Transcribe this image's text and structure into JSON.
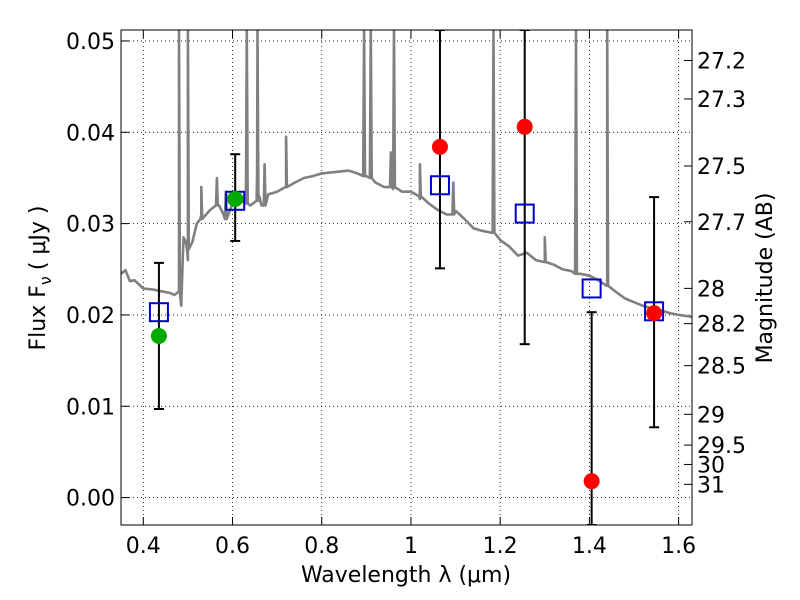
{
  "chart_data": {
    "type": "scatter",
    "xlabel": "Wavelength  λ (μm)",
    "ylabel": "Flux  F",
    "ylabel_sub": "ν",
    "ylabel_unit": "( μJy )",
    "y2label": "Magnitude (AB)",
    "xlim": [
      0.35,
      1.63
    ],
    "ylim": [
      -0.003,
      0.0512
    ],
    "grid": true,
    "x_ticks": [
      0.4,
      0.6,
      0.8,
      1.0,
      1.2,
      1.4,
      1.6
    ],
    "x_tick_labels": [
      "0.4",
      "0.6",
      "0.8",
      "1",
      "1.2",
      "1.4",
      "1.6"
    ],
    "y_ticks": [
      0.0,
      0.01,
      0.02,
      0.03,
      0.04,
      0.05
    ],
    "y_tick_labels": [
      "0.00",
      "0.01",
      "0.02",
      "0.03",
      "0.04",
      "0.05"
    ],
    "mag_ticks": [
      {
        "label": "27.2",
        "flux": 0.04786
      },
      {
        "label": "27.3",
        "flux": 0.04365
      },
      {
        "label": "27.5",
        "flux": 0.03631
      },
      {
        "label": "27.7",
        "flux": 0.0302
      },
      {
        "label": "28",
        "flux": 0.02291
      },
      {
        "label": "28.2",
        "flux": 0.01905
      },
      {
        "label": "28.5",
        "flux": 0.01445
      },
      {
        "label": "29",
        "flux": 0.00912
      },
      {
        "label": "29.5",
        "flux": 0.00575
      },
      {
        "label": "30",
        "flux": 0.00363
      },
      {
        "label": "31",
        "flux": 0.00145
      }
    ],
    "model_sed": {
      "color": "#808080",
      "x": [
        0.35,
        0.36,
        0.37,
        0.38,
        0.4,
        0.42,
        0.44,
        0.46,
        0.47,
        0.48,
        0.485,
        0.49,
        0.495,
        0.5,
        0.51,
        0.52,
        0.53,
        0.55,
        0.57,
        0.58,
        0.6,
        0.62,
        0.64,
        0.655,
        0.66,
        0.665,
        0.68,
        0.7,
        0.72,
        0.74,
        0.76,
        0.78,
        0.8,
        0.82,
        0.84,
        0.86,
        0.88,
        0.9,
        0.92,
        0.94,
        0.96,
        0.98,
        1.0,
        1.02,
        1.04,
        1.06,
        1.08,
        1.1,
        1.12,
        1.14,
        1.16,
        1.18,
        1.2,
        1.22,
        1.24,
        1.26,
        1.28,
        1.3,
        1.32,
        1.34,
        1.36,
        1.38,
        1.4,
        1.42,
        1.44,
        1.46,
        1.48,
        1.5,
        1.52,
        1.54,
        1.56,
        1.58,
        1.6,
        1.63
      ],
      "y": [
        0.0245,
        0.0249,
        0.0237,
        0.0238,
        0.0229,
        0.0228,
        0.0226,
        0.0224,
        0.0222,
        0.0226,
        0.021,
        0.0285,
        0.028,
        0.026,
        0.028,
        0.03,
        0.031,
        0.0315,
        0.032,
        0.031,
        0.0322,
        0.0325,
        0.032,
        0.0355,
        0.033,
        0.032,
        0.0332,
        0.0335,
        0.0341,
        0.0345,
        0.035,
        0.0352,
        0.0355,
        0.0356,
        0.0357,
        0.0358,
        0.0355,
        0.0352,
        0.0345,
        0.034,
        0.0338,
        0.0335,
        0.0335,
        0.0327,
        0.0322,
        0.0315,
        0.031,
        0.0314,
        0.0305,
        0.0295,
        0.0292,
        0.029,
        0.0282,
        0.0275,
        0.0265,
        0.0268,
        0.026,
        0.0258,
        0.0255,
        0.025,
        0.0248,
        0.0245,
        0.0243,
        0.0238,
        0.0232,
        0.0225,
        0.0218,
        0.0214,
        0.021,
        0.0207,
        0.0205,
        0.0202,
        0.02,
        0.0198
      ],
      "spikes": [
        {
          "x": 0.48,
          "base": 0.0225,
          "peak": 0.0512
        },
        {
          "x": 0.5,
          "base": 0.0272,
          "peak": 0.0512
        },
        {
          "x": 0.53,
          "base": 0.0305,
          "peak": 0.034
        },
        {
          "x": 0.565,
          "base": 0.032,
          "peak": 0.035
        },
        {
          "x": 0.585,
          "base": 0.0305,
          "peak": 0.0335
        },
        {
          "x": 0.632,
          "base": 0.0322,
          "peak": 0.0512
        },
        {
          "x": 0.656,
          "base": 0.0325,
          "peak": 0.0512
        },
        {
          "x": 0.672,
          "base": 0.032,
          "peak": 0.0365
        },
        {
          "x": 0.72,
          "base": 0.034,
          "peak": 0.0395
        },
        {
          "x": 0.895,
          "base": 0.0352,
          "peak": 0.0512
        },
        {
          "x": 0.91,
          "base": 0.035,
          "peak": 0.0512
        },
        {
          "x": 0.955,
          "base": 0.034,
          "peak": 0.0378
        },
        {
          "x": 0.962,
          "base": 0.034,
          "peak": 0.0512
        },
        {
          "x": 1.02,
          "base": 0.033,
          "peak": 0.0365
        },
        {
          "x": 1.095,
          "base": 0.031,
          "peak": 0.0345
        },
        {
          "x": 1.185,
          "base": 0.029,
          "peak": 0.0512
        },
        {
          "x": 1.3,
          "base": 0.0258,
          "peak": 0.0285
        },
        {
          "x": 1.37,
          "base": 0.0245,
          "peak": 0.0512
        },
        {
          "x": 1.44,
          "base": 0.0232,
          "peak": 0.0512
        }
      ]
    },
    "series": [
      {
        "marker": "square",
        "color": "#0000cc",
        "points": [
          {
            "x": 0.435,
            "y": 0.0203
          },
          {
            "x": 0.606,
            "y": 0.0325
          },
          {
            "x": 1.065,
            "y": 0.0342
          },
          {
            "x": 1.255,
            "y": 0.0311
          },
          {
            "x": 1.405,
            "y": 0.0229
          },
          {
            "x": 1.545,
            "y": 0.0204
          }
        ]
      },
      {
        "marker": "circle",
        "color": "#00aa00",
        "points": [
          {
            "x": 0.435,
            "y": 0.0177
          },
          {
            "x": 0.606,
            "y": 0.0327
          }
        ]
      },
      {
        "marker": "circle",
        "color": "#ff0000",
        "points": [
          {
            "x": 1.065,
            "y": 0.0384
          },
          {
            "x": 1.255,
            "y": 0.0406
          },
          {
            "x": 1.405,
            "y": 0.0018
          },
          {
            "x": 1.545,
            "y": 0.0202
          }
        ]
      }
    ],
    "error_bars": [
      {
        "x": 0.435,
        "ylow": 0.0097,
        "yhigh": 0.0257
      },
      {
        "x": 0.606,
        "ylow": 0.0281,
        "yhigh": 0.0376
      },
      {
        "x": 1.065,
        "ylow": 0.0251,
        "yhigh": 0.0512
      },
      {
        "x": 1.255,
        "ylow": 0.0168,
        "yhigh": 0.0512
      },
      {
        "x": 1.405,
        "ylow": -0.003,
        "yhigh": 0.0203
      },
      {
        "x": 1.545,
        "ylow": 0.0077,
        "yhigh": 0.0329
      }
    ]
  }
}
